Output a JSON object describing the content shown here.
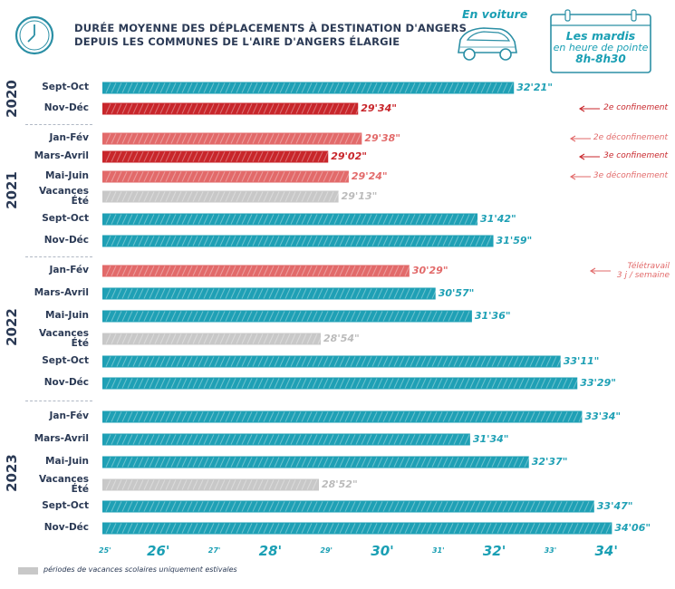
{
  "header": {
    "title_line1": "DURÉE MOYENNE DES DÉPLACEMENTS À DESTINATION D'ANGERS",
    "title_line2": "DEPUIS LES COMMUNES DE L'AIRE D'ANGERS ÉLARGIE",
    "car_label": "En voiture",
    "calendar_line1": "Les mardis",
    "calendar_line2": "en heure de pointe",
    "calendar_line3": "8h-8h30"
  },
  "colors": {
    "teal": "#1fa0b5",
    "dark_red": "#c8262b",
    "light_red": "#e26a6a",
    "grey": "#c8c8c8",
    "navy": "#2b3a55"
  },
  "legend": {
    "text": "périodes de vacances scolaires uniquement estivales"
  },
  "chart_data": {
    "type": "bar",
    "orientation": "horizontal",
    "title": "DURÉE MOYENNE DES DÉPLACEMENTS À DESTINATION D'ANGERS DEPUIS LES COMMUNES DE L'AIRE D'ANGERS ÉLARGIE",
    "xlim": [
      25,
      34.25
    ],
    "ticks": [
      "25'",
      "26'",
      "27'",
      "28'",
      "29'",
      "30'",
      "31'",
      "32'",
      "33'",
      "34'"
    ],
    "years": [
      {
        "label": "2020",
        "rows": [
          0,
          1
        ]
      },
      {
        "label": "2021",
        "rows": [
          2,
          3,
          4,
          5,
          6,
          7
        ]
      },
      {
        "label": "2022",
        "rows": [
          8,
          9,
          10,
          11,
          12,
          13
        ]
      },
      {
        "label": "2023",
        "rows": [
          14,
          15,
          16,
          17,
          18,
          19
        ]
      }
    ],
    "rows": [
      {
        "category": "Sept-Oct",
        "value": 32.35,
        "label": "32'21\"",
        "kind": "teal"
      },
      {
        "category": "Nov-Déc",
        "value": 29.567,
        "label": "29'34\"",
        "kind": "dark_red",
        "annotation": "2e confinement"
      },
      {
        "category": "Jan-Fév",
        "value": 29.633,
        "label": "29'38\"",
        "kind": "light_red",
        "annotation": "2e déconfinement"
      },
      {
        "category": "Mars-Avril",
        "value": 29.033,
        "label": "29'02\"",
        "kind": "dark_red",
        "annotation": "3e confinement"
      },
      {
        "category": "Mai-Juin",
        "value": 29.4,
        "label": "29'24\"",
        "kind": "light_red",
        "annotation": "3e déconfinement"
      },
      {
        "category": "Vacances Été",
        "value": 29.217,
        "label": "29'13\"",
        "kind": "grey"
      },
      {
        "category": "Sept-Oct",
        "value": 31.7,
        "label": "31'42\"",
        "kind": "teal"
      },
      {
        "category": "Nov-Déc",
        "value": 31.983,
        "label": "31'59\"",
        "kind": "teal"
      },
      {
        "category": "Jan-Fév",
        "value": 30.483,
        "label": "30'29\"",
        "kind": "light_red",
        "annotation": "Télétravail 3 j / semaine"
      },
      {
        "category": "Mars-Avril",
        "value": 30.95,
        "label": "30'57\"",
        "kind": "teal"
      },
      {
        "category": "Mai-Juin",
        "value": 31.6,
        "label": "31'36\"",
        "kind": "teal"
      },
      {
        "category": "Vacances Été",
        "value": 28.9,
        "label": "28'54\"",
        "kind": "grey"
      },
      {
        "category": "Sept-Oct",
        "value": 33.183,
        "label": "33'11\"",
        "kind": "teal"
      },
      {
        "category": "Nov-Déc",
        "value": 33.483,
        "label": "33'29\"",
        "kind": "teal"
      },
      {
        "category": "Jan-Fév",
        "value": 33.567,
        "label": "33'34\"",
        "kind": "teal"
      },
      {
        "category": "Mars-Avril",
        "value": 31.567,
        "label": "31'34\"",
        "kind": "teal"
      },
      {
        "category": "Mai-Juin",
        "value": 32.617,
        "label": "32'37\"",
        "kind": "teal"
      },
      {
        "category": "Vacances Été",
        "value": 28.867,
        "label": "28'52\"",
        "kind": "grey"
      },
      {
        "category": "Sept-Oct",
        "value": 33.783,
        "label": "33'47\"",
        "kind": "teal"
      },
      {
        "category": "Nov-Déc",
        "value": 34.1,
        "label": "34'06\"",
        "kind": "teal"
      }
    ]
  }
}
